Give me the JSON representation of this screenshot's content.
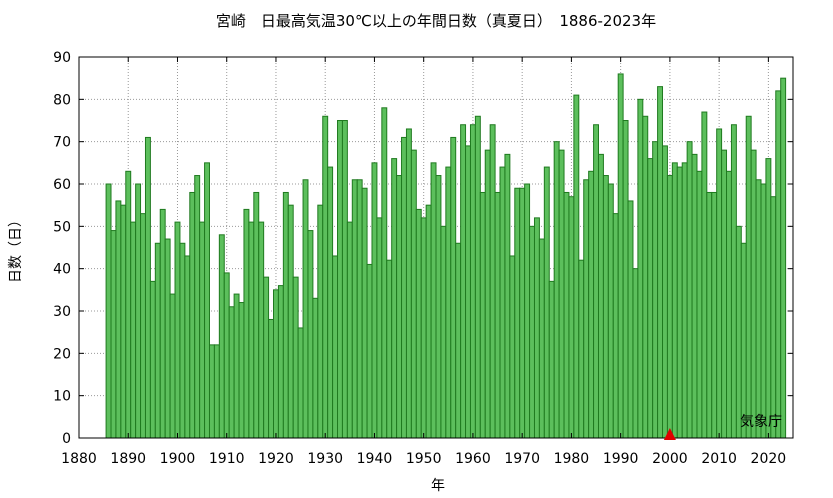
{
  "chart_data": {
    "type": "bar",
    "title": "宮崎　日最高気温30℃以上の年間日数（真夏日）　1886-2023年",
    "xlabel": "年",
    "ylabel": "日数（日）",
    "xlim": [
      1880,
      2025
    ],
    "ylim": [
      0,
      90
    ],
    "xticks": [
      "1880",
      "1890",
      "1900",
      "1910",
      "1920",
      "1930",
      "1940",
      "1950",
      "1960",
      "1970",
      "1980",
      "1990",
      "2000",
      "2010",
      "2020"
    ],
    "yticks": [
      "0",
      "10",
      "20",
      "30",
      "40",
      "50",
      "60",
      "70",
      "80",
      "90"
    ],
    "grid": true,
    "start_year": 1886,
    "values": [
      60,
      49,
      56,
      55,
      63,
      51,
      60,
      53,
      71,
      37,
      46,
      54,
      47,
      34,
      51,
      46,
      43,
      58,
      62,
      51,
      65,
      22,
      22,
      48,
      39,
      31,
      34,
      32,
      54,
      51,
      58,
      51,
      38,
      28,
      35,
      36,
      58,
      55,
      38,
      26,
      61,
      49,
      33,
      55,
      76,
      64,
      43,
      75,
      75,
      51,
      61,
      61,
      59,
      41,
      65,
      52,
      78,
      42,
      66,
      62,
      71,
      73,
      68,
      54,
      52,
      55,
      65,
      62,
      50,
      64,
      71,
      46,
      74,
      69,
      74,
      76,
      58,
      68,
      74,
      58,
      64,
      67,
      43,
      59,
      59,
      60,
      50,
      52,
      47,
      64,
      37,
      70,
      68,
      58,
      57,
      81,
      42,
      61,
      63,
      74,
      67,
      62,
      60,
      53,
      86,
      75,
      56,
      40,
      80,
      76,
      66,
      70,
      83,
      69,
      62,
      65,
      64,
      65,
      70,
      67,
      63,
      77,
      58,
      58,
      73,
      68,
      63,
      74,
      50,
      46,
      76,
      68,
      61,
      60,
      66,
      57,
      82,
      85
    ],
    "marker": {
      "year": 2000,
      "color": "#e00000",
      "shape": "triangle"
    },
    "bar_fill": "#5cbf5c",
    "bar_stroke": "#1f7a1f"
  },
  "credit": "気象庁"
}
